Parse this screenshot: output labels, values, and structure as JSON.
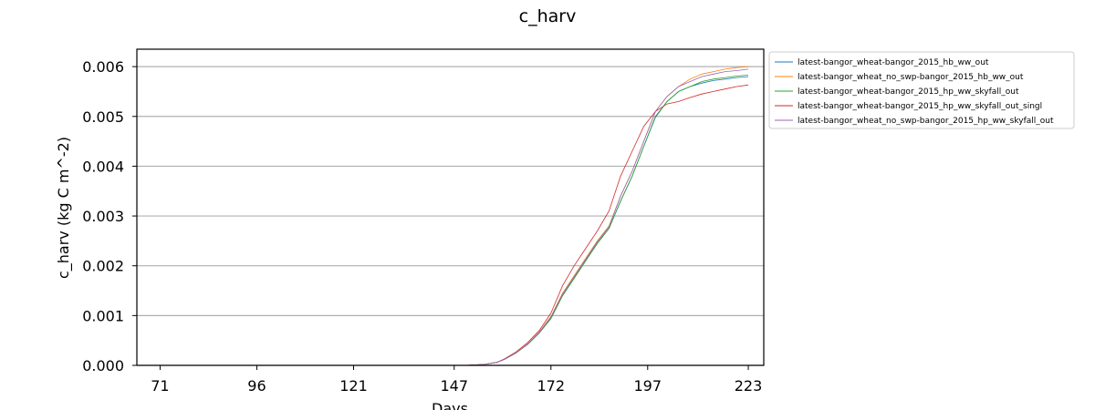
{
  "chart_data": {
    "type": "line",
    "title": "c_harv",
    "xlabel": "Days",
    "ylabel": "c_harv (kg C m^-2)",
    "xlim": [
      65,
      227
    ],
    "ylim": [
      0,
      0.00635
    ],
    "xticks": [
      71,
      96,
      121,
      147,
      172,
      197,
      223
    ],
    "yticks": [
      0.0,
      0.001,
      0.002,
      0.003,
      0.004,
      0.005,
      0.006
    ],
    "ytick_labels": [
      "0.000",
      "0.001",
      "0.002",
      "0.003",
      "0.004",
      "0.005",
      "0.006"
    ],
    "grid": "horizontal",
    "legend_position": "outside-top-right",
    "series": [
      {
        "name": "latest-bangor_wheat-bangor_2015_hb_ww_out",
        "color": "#1f77b4",
        "x": [
          71,
          150,
          155,
          158,
          160,
          163,
          166,
          169,
          172,
          175,
          178,
          181,
          184,
          187,
          190,
          193,
          196,
          199,
          202,
          205,
          208,
          211,
          214,
          217,
          220,
          223
        ],
        "y": [
          0,
          0,
          2e-05,
          6e-05,
          0.00012,
          0.00025,
          0.00042,
          0.00065,
          0.00095,
          0.0014,
          0.00175,
          0.0021,
          0.00245,
          0.00275,
          0.0033,
          0.0038,
          0.0044,
          0.005,
          0.0053,
          0.0055,
          0.0056,
          0.00567,
          0.00572,
          0.00575,
          0.00578,
          0.0058
        ]
      },
      {
        "name": "latest-bangor_wheat_no_swp-bangor_2015_hb_ww_out",
        "color": "#ff7f0e",
        "x": [
          71,
          150,
          155,
          158,
          160,
          163,
          166,
          169,
          172,
          175,
          178,
          181,
          184,
          187,
          190,
          193,
          196,
          199,
          202,
          205,
          208,
          211,
          214,
          217,
          220,
          223
        ],
        "y": [
          0,
          0,
          2e-05,
          6e-05,
          0.00012,
          0.00025,
          0.00043,
          0.00067,
          0.00098,
          0.00145,
          0.0018,
          0.00215,
          0.0025,
          0.0028,
          0.0034,
          0.0039,
          0.0045,
          0.0051,
          0.0054,
          0.0056,
          0.00575,
          0.00585,
          0.0059,
          0.00595,
          0.00598,
          0.006
        ]
      },
      {
        "name": "latest-bangor_wheat-bangor_2015_hp_ww_skyfall_out",
        "color": "#2ca02c",
        "x": [
          71,
          150,
          155,
          158,
          160,
          163,
          166,
          169,
          172,
          175,
          178,
          181,
          184,
          187,
          190,
          193,
          196,
          199,
          202,
          205,
          208,
          211,
          214,
          217,
          220,
          223
        ],
        "y": [
          0,
          0,
          2e-05,
          6e-05,
          0.00012,
          0.00025,
          0.00042,
          0.00065,
          0.00094,
          0.0014,
          0.00175,
          0.0021,
          0.00245,
          0.00275,
          0.0033,
          0.0038,
          0.0044,
          0.00498,
          0.0053,
          0.0055,
          0.0056,
          0.0057,
          0.00575,
          0.00578,
          0.00581,
          0.00583
        ]
      },
      {
        "name": "latest-bangor_wheat-bangor_2015_hp_ww_skyfall_out_singl",
        "color": "#d62728",
        "x": [
          71,
          150,
          155,
          158,
          160,
          163,
          166,
          169,
          172,
          175,
          178,
          181,
          184,
          187,
          190,
          193,
          196,
          199,
          202,
          205,
          208,
          211,
          214,
          217,
          220,
          223
        ],
        "y": [
          0,
          0,
          2e-05,
          6e-05,
          0.00013,
          0.00027,
          0.00046,
          0.0007,
          0.00105,
          0.0016,
          0.002,
          0.00235,
          0.0027,
          0.0031,
          0.0038,
          0.0043,
          0.0048,
          0.0051,
          0.00525,
          0.0053,
          0.00538,
          0.00545,
          0.0055,
          0.00555,
          0.0056,
          0.00563
        ]
      },
      {
        "name": "latest-bangor_wheat_no_swp-bangor_2015_hp_ww_skyfall_out",
        "color": "#9467bd",
        "x": [
          71,
          150,
          155,
          158,
          160,
          163,
          166,
          169,
          172,
          175,
          178,
          181,
          184,
          187,
          190,
          193,
          196,
          199,
          202,
          205,
          208,
          211,
          214,
          217,
          220,
          223
        ],
        "y": [
          0,
          0,
          2e-05,
          6e-05,
          0.00012,
          0.00025,
          0.00043,
          0.00066,
          0.00097,
          0.00143,
          0.00178,
          0.00213,
          0.00248,
          0.00278,
          0.0034,
          0.0039,
          0.0045,
          0.0051,
          0.0054,
          0.0056,
          0.0057,
          0.0058,
          0.00585,
          0.0059,
          0.00592,
          0.00595
        ]
      }
    ]
  }
}
